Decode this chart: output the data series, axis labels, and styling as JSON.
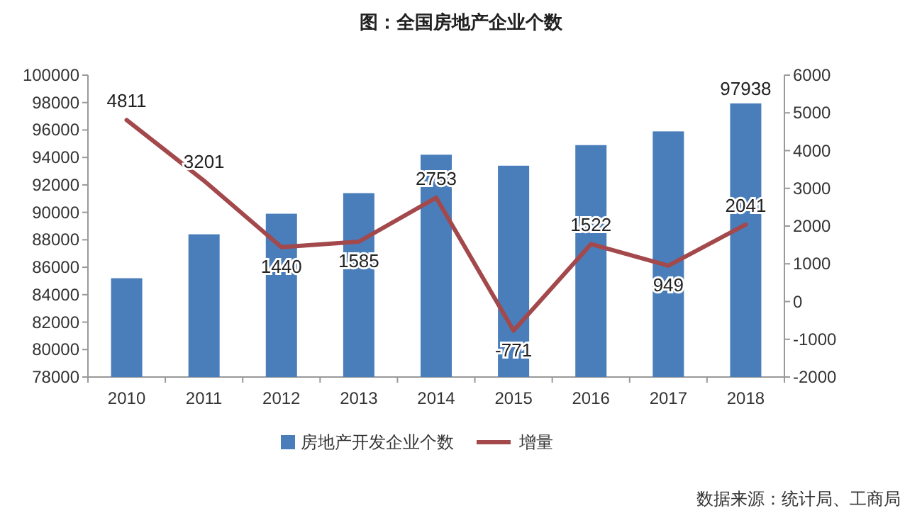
{
  "chart_data": {
    "type": "bar",
    "title": "图：全国房地产企业个数",
    "categories": [
      "2010",
      "2011",
      "2012",
      "2013",
      "2014",
      "2015",
      "2016",
      "2017",
      "2018"
    ],
    "series": [
      {
        "name": "房地产开发企业个数",
        "color": "#4a7ebb",
        "values": [
          85200,
          88400,
          89900,
          91400,
          94200,
          93400,
          94900,
          95900,
          97938
        ],
        "value_labels": [
          null,
          null,
          null,
          null,
          null,
          null,
          null,
          null,
          "97938"
        ]
      },
      {
        "name": "增量",
        "type": "line",
        "axis": "y2",
        "color": "#a3484b",
        "values": [
          4811,
          3201,
          1440,
          1585,
          2753,
          -771,
          1522,
          949,
          2041
        ],
        "value_labels": [
          "4811",
          "3201",
          "1440",
          "1585",
          "2753",
          "-771",
          "1522",
          "949",
          "2041"
        ]
      }
    ],
    "ylim": [
      78000,
      100000
    ],
    "yticks": [
      78000,
      80000,
      82000,
      84000,
      86000,
      88000,
      90000,
      92000,
      94000,
      96000,
      98000,
      100000
    ],
    "y2lim": [
      -2000,
      6000
    ],
    "y2ticks": [
      {
        "value": -2000,
        "label": "-2000"
      },
      {
        "value": -1000,
        "label": "-1000"
      },
      0,
      1000,
      2000,
      3000,
      4000,
      5000,
      6000
    ],
    "grid": false,
    "legend": "bottom",
    "annotations": [
      "数据来源：统计局、工商局"
    ]
  }
}
